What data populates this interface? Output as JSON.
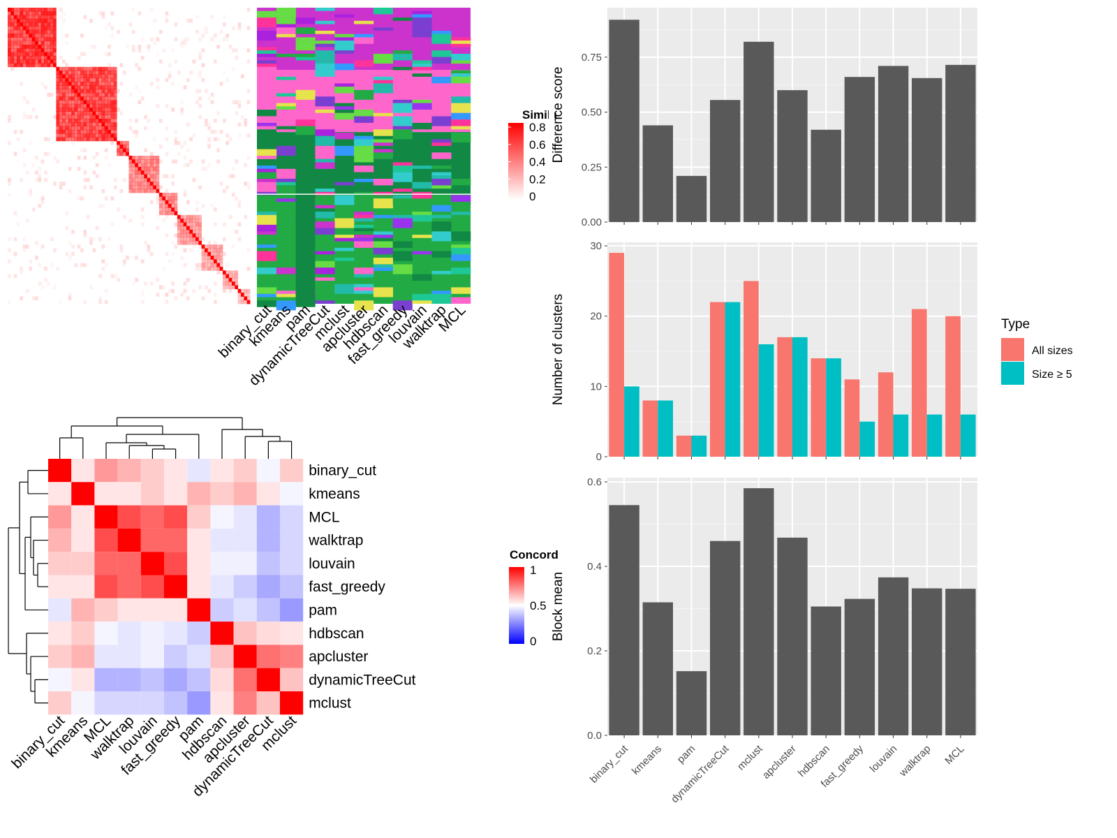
{
  "methods": [
    "binary_cut",
    "kmeans",
    "pam",
    "dynamicTreeCut",
    "mclust",
    "apcluster",
    "hdbscan",
    "fast_greedy",
    "louvain",
    "walktrap",
    "MCL"
  ],
  "similarity_panel": {
    "legend_title": "Simila",
    "legend_ticks": [
      "0.8",
      "0.6",
      "0.4",
      "0.2",
      "0"
    ],
    "column_labels": [
      "binary_cut",
      "kmeans",
      "pam",
      "dynamicTreeCut",
      "mclust",
      "apcluster",
      "hdbscan",
      "fast_greedy",
      "louvain",
      "walktrap",
      "MCL"
    ]
  },
  "concordance_panel": {
    "legend_title": "Concord",
    "legend_ticks": [
      "1",
      "0.5",
      "0"
    ],
    "order": [
      "binary_cut",
      "kmeans",
      "MCL",
      "walktrap",
      "louvain",
      "fast_greedy",
      "pam",
      "hdbscan",
      "apcluster",
      "dynamicTreeCut",
      "mclust"
    ],
    "matrix": [
      [
        1.0,
        0.55,
        0.7,
        0.65,
        0.6,
        0.55,
        0.45,
        0.55,
        0.6,
        0.48,
        0.6
      ],
      [
        0.55,
        1.0,
        0.55,
        0.55,
        0.6,
        0.55,
        0.65,
        0.6,
        0.65,
        0.55,
        0.48
      ],
      [
        0.7,
        0.55,
        1.0,
        0.85,
        0.8,
        0.85,
        0.6,
        0.48,
        0.45,
        0.35,
        0.42
      ],
      [
        0.65,
        0.55,
        0.85,
        1.0,
        0.8,
        0.8,
        0.55,
        0.45,
        0.45,
        0.35,
        0.42
      ],
      [
        0.6,
        0.6,
        0.8,
        0.8,
        1.0,
        0.85,
        0.55,
        0.47,
        0.47,
        0.38,
        0.42
      ],
      [
        0.55,
        0.55,
        0.85,
        0.8,
        0.85,
        1.0,
        0.55,
        0.45,
        0.4,
        0.33,
        0.38
      ],
      [
        0.45,
        0.65,
        0.6,
        0.55,
        0.55,
        0.55,
        1.0,
        0.4,
        0.44,
        0.38,
        0.3
      ],
      [
        0.55,
        0.6,
        0.48,
        0.45,
        0.47,
        0.45,
        0.4,
        1.0,
        0.62,
        0.57,
        0.55
      ],
      [
        0.6,
        0.65,
        0.45,
        0.45,
        0.47,
        0.4,
        0.44,
        0.62,
        1.0,
        0.78,
        0.75
      ],
      [
        0.48,
        0.55,
        0.35,
        0.35,
        0.38,
        0.33,
        0.38,
        0.57,
        0.78,
        1.0,
        0.62
      ],
      [
        0.6,
        0.48,
        0.42,
        0.42,
        0.42,
        0.38,
        0.3,
        0.55,
        0.75,
        0.62,
        1.0
      ]
    ]
  },
  "chart_data": [
    {
      "type": "bar",
      "categories": [
        "binary_cut",
        "kmeans",
        "pam",
        "dynamicTreeCut",
        "mclust",
        "apcluster",
        "hdbscan",
        "fast_greedy",
        "louvain",
        "walktrap",
        "MCL"
      ],
      "values": [
        0.92,
        0.44,
        0.21,
        0.555,
        0.82,
        0.6,
        0.42,
        0.66,
        0.71,
        0.655,
        0.715
      ],
      "ylabel": "Difference score",
      "ylim": [
        0,
        0.975
      ],
      "yticks": [
        "0.00",
        "0.25",
        "0.50",
        "0.75"
      ],
      "color": "#595959"
    },
    {
      "type": "bar",
      "categories": [
        "binary_cut",
        "kmeans",
        "pam",
        "dynamicTreeCut",
        "mclust",
        "apcluster",
        "hdbscan",
        "fast_greedy",
        "louvain",
        "walktrap",
        "MCL"
      ],
      "series": [
        {
          "name": "All sizes",
          "values": [
            29,
            8,
            3,
            22,
            25,
            17,
            14,
            11,
            12,
            21,
            20
          ],
          "color": "#F8766D"
        },
        {
          "name": "Size ≥ 5",
          "values": [
            10,
            8,
            3,
            22,
            16,
            17,
            14,
            5,
            6,
            6,
            6
          ],
          "color": "#00BFC4"
        }
      ],
      "ylabel": "Number of clusters",
      "ylim": [
        0,
        30.5
      ],
      "yticks": [
        "0",
        "10",
        "20",
        "30"
      ],
      "legend_title": "Type",
      "legend_position": "right"
    },
    {
      "type": "bar",
      "categories": [
        "binary_cut",
        "kmeans",
        "pam",
        "dynamicTreeCut",
        "mclust",
        "apcluster",
        "hdbscan",
        "fast_greedy",
        "louvain",
        "walktrap",
        "MCL"
      ],
      "values": [
        0.545,
        0.315,
        0.152,
        0.46,
        0.585,
        0.468,
        0.305,
        0.323,
        0.374,
        0.348,
        0.347
      ],
      "ylabel": "Block mean",
      "ylim": [
        0,
        0.61
      ],
      "yticks": [
        "0.0",
        "0.2",
        "0.4",
        "0.6"
      ],
      "color": "#595959"
    }
  ]
}
